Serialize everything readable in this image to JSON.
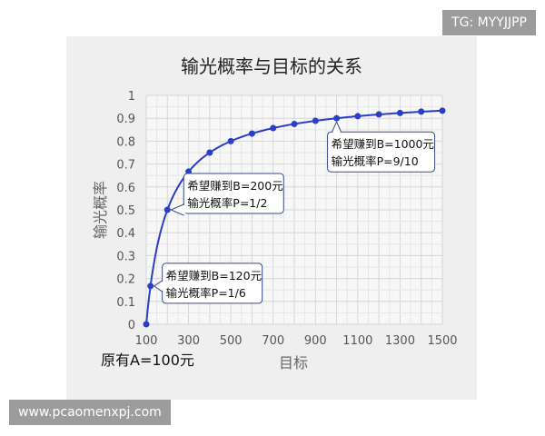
{
  "watermarks": {
    "top": "TG: MYYJJPP",
    "bottom": "www.pcaomenxpj.com"
  },
  "chart_data": {
    "type": "line",
    "title": "输光概率与目标的关系",
    "xlabel": "目标",
    "ylabel": "输光概率",
    "note": "原有A=100元",
    "x": [
      100,
      120,
      200,
      300,
      400,
      500,
      600,
      700,
      800,
      900,
      1000,
      1100,
      1200,
      1300,
      1400,
      1500
    ],
    "y": [
      0,
      0.167,
      0.5,
      0.667,
      0.75,
      0.8,
      0.833,
      0.857,
      0.875,
      0.889,
      0.9,
      0.909,
      0.917,
      0.923,
      0.929,
      0.933
    ],
    "xlim": [
      100,
      1500
    ],
    "ylim": [
      0,
      1
    ],
    "xticks": [
      "100",
      "300",
      "500",
      "700",
      "900",
      "1100",
      "1300",
      "1500"
    ],
    "yticks": [
      "0",
      "0.1",
      "0.2",
      "0.3",
      "0.4",
      "0.5",
      "0.6",
      "0.7",
      "0.8",
      "0.9",
      "1"
    ],
    "grid": true,
    "line_color": "#2a3fc4",
    "annotations": [
      {
        "x": 120,
        "y": 0.167,
        "lines": [
          "希望赚到B=120元",
          "输光概率P=1/6"
        ]
      },
      {
        "x": 200,
        "y": 0.5,
        "lines": [
          "希望赚到B=200元",
          "输光概率P=1/2"
        ]
      },
      {
        "x": 1000,
        "y": 0.9,
        "lines": [
          "希望赚到B=1000元",
          "输光概率P=9/10"
        ]
      }
    ]
  }
}
